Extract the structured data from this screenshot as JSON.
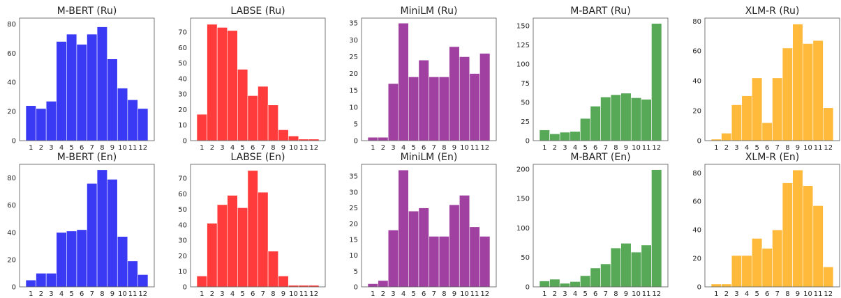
{
  "chart_data": [
    {
      "type": "bar",
      "title": "M-BERT (Ru)",
      "color": "#3a3af5",
      "categories": [
        "1",
        "2",
        "3",
        "4",
        "5",
        "6",
        "7",
        "8",
        "9",
        "10",
        "11",
        "12"
      ],
      "values": [
        24,
        22,
        27,
        68,
        73,
        66,
        73,
        78,
        56,
        36,
        28,
        22
      ],
      "ylim": [
        0,
        84
      ],
      "yticks": [
        "0",
        "20",
        "40",
        "60",
        "80"
      ]
    },
    {
      "type": "bar",
      "title": "LABSE (Ru)",
      "color": "#ff3b3b",
      "categories": [
        "1",
        "2",
        "3",
        "4",
        "5",
        "6",
        "7",
        "8",
        "9",
        "10",
        "11",
        "12"
      ],
      "values": [
        17,
        75,
        73,
        71,
        46,
        29,
        35,
        23,
        7,
        3,
        1,
        1
      ],
      "ylim": [
        0,
        79
      ],
      "yticks": [
        "0",
        "10",
        "20",
        "30",
        "40",
        "50",
        "60",
        "70"
      ]
    },
    {
      "type": "bar",
      "title": "MiniLM (Ru)",
      "color": "#a040a0",
      "categories": [
        "1",
        "2",
        "3",
        "4",
        "5",
        "6",
        "7",
        "8",
        "9",
        "10",
        "11",
        "12"
      ],
      "values": [
        1,
        1,
        17,
        35,
        19,
        24,
        19,
        19,
        28,
        25,
        20,
        26
      ],
      "ylim": [
        0,
        36.5
      ],
      "yticks": [
        "0",
        "5",
        "10",
        "15",
        "20",
        "25",
        "30",
        "35"
      ]
    },
    {
      "type": "bar",
      "title": "M-BART (Ru)",
      "color": "#57a857",
      "categories": [
        "1",
        "2",
        "3",
        "4",
        "5",
        "6",
        "7",
        "8",
        "9",
        "10",
        "11",
        "12"
      ],
      "values": [
        14,
        9,
        11,
        12,
        29,
        45,
        57,
        60,
        62,
        56,
        54,
        153
      ],
      "ylim": [
        0,
        160
      ],
      "yticks": [
        "0",
        "25",
        "50",
        "75",
        "100",
        "125",
        "150"
      ]
    },
    {
      "type": "bar",
      "title": "XLM-R (Ru)",
      "color": "#ffb93b",
      "categories": [
        "1",
        "2",
        "3",
        "4",
        "5",
        "6",
        "7",
        "8",
        "9",
        "10",
        "11",
        "12"
      ],
      "values": [
        1,
        5,
        24,
        30,
        42,
        12,
        42,
        62,
        78,
        65,
        67,
        22
      ],
      "ylim": [
        0,
        82
      ],
      "yticks": [
        "0",
        "20",
        "40",
        "60",
        "80"
      ]
    },
    {
      "type": "bar",
      "title": "M-BERT (En)",
      "color": "#3a3af5",
      "categories": [
        "1",
        "2",
        "3",
        "4",
        "5",
        "6",
        "7",
        "8",
        "9",
        "10",
        "11",
        "12"
      ],
      "values": [
        5,
        10,
        10,
        40,
        41,
        42,
        76,
        86,
        79,
        37,
        19,
        9
      ],
      "ylim": [
        0,
        90
      ],
      "yticks": [
        "0",
        "20",
        "40",
        "60",
        "80"
      ]
    },
    {
      "type": "bar",
      "title": "LABSE (En)",
      "color": "#ff3b3b",
      "categories": [
        "1",
        "2",
        "3",
        "4",
        "5",
        "6",
        "7",
        "8",
        "9",
        "10",
        "11",
        "12"
      ],
      "values": [
        7,
        41,
        53,
        59,
        51,
        75,
        61,
        23,
        7,
        1,
        1,
        1
      ],
      "ylim": [
        0,
        79
      ],
      "yticks": [
        "0",
        "10",
        "20",
        "30",
        "40",
        "50",
        "60",
        "70"
      ]
    },
    {
      "type": "bar",
      "title": "MiniLM (En)",
      "color": "#a040a0",
      "categories": [
        "1",
        "2",
        "3",
        "4",
        "5",
        "6",
        "7",
        "8",
        "9",
        "10",
        "11",
        "12"
      ],
      "values": [
        1,
        2,
        18,
        37,
        24,
        25,
        16,
        16,
        26,
        29,
        19,
        16
      ],
      "ylim": [
        0,
        38.8
      ],
      "yticks": [
        "0",
        "5",
        "10",
        "15",
        "20",
        "25",
        "30",
        "35"
      ]
    },
    {
      "type": "bar",
      "title": "M-BART (En)",
      "color": "#57a857",
      "categories": [
        "1",
        "2",
        "3",
        "4",
        "5",
        "6",
        "7",
        "8",
        "9",
        "10",
        "11",
        "12"
      ],
      "values": [
        10,
        13,
        6,
        9,
        19,
        32,
        39,
        66,
        74,
        59,
        71,
        199
      ],
      "ylim": [
        0,
        208
      ],
      "yticks": [
        "0",
        "50",
        "100",
        "150",
        "200"
      ]
    },
    {
      "type": "bar",
      "title": "XLM-R (En)",
      "color": "#ffb93b",
      "categories": [
        "1",
        "2",
        "3",
        "4",
        "5",
        "6",
        "7",
        "8",
        "9",
        "10",
        "11",
        "12"
      ],
      "values": [
        2,
        2,
        22,
        22,
        34,
        27,
        40,
        73,
        82,
        71,
        57,
        14
      ],
      "ylim": [
        0,
        86
      ],
      "yticks": [
        "0",
        "20",
        "40",
        "60",
        "80"
      ]
    }
  ]
}
